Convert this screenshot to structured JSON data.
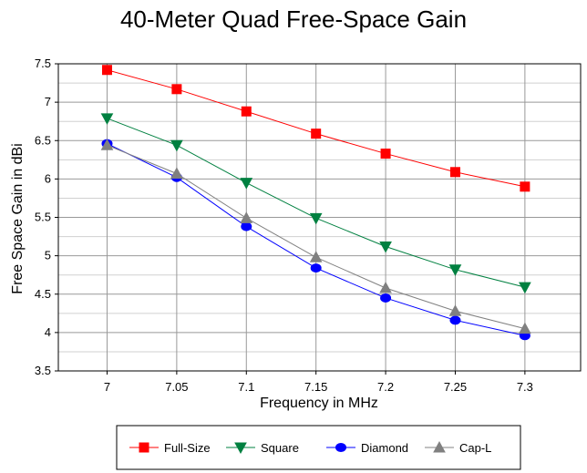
{
  "chart_data": {
    "type": "line",
    "title": "40-Meter Quad Free-Space Gain",
    "xlabel": "Frequency in MHz",
    "ylabel": "Free Space Gain in dBi",
    "x": [
      7,
      7.05,
      7.1,
      7.15,
      7.2,
      7.25,
      7.3
    ],
    "x_tick_labels": [
      "7",
      "7.05",
      "7.1",
      "7.15",
      "7.2",
      "7.25",
      "7.3"
    ],
    "xlim": [
      6.965,
      7.34
    ],
    "ylim": [
      3.5,
      7.5
    ],
    "y_ticks": [
      3.5,
      4,
      4.5,
      5,
      5.5,
      6,
      6.5,
      7,
      7.5
    ],
    "y_tick_labels": [
      "3.5",
      "4",
      "4.5",
      "5",
      "5.5",
      "6",
      "6.5",
      "7",
      "7.5"
    ],
    "grid": true,
    "legend_position": "bottom",
    "series": [
      {
        "name": "Full-Size",
        "color": "#ff0000",
        "marker": "square",
        "values": [
          7.42,
          7.17,
          6.88,
          6.59,
          6.33,
          6.09,
          5.9
        ]
      },
      {
        "name": "Square",
        "color": "#008040",
        "marker": "triangle-down",
        "values": [
          6.79,
          6.44,
          5.95,
          5.49,
          5.12,
          4.82,
          4.59
        ]
      },
      {
        "name": "Diamond",
        "color": "#0000ff",
        "marker": "circle",
        "values": [
          6.46,
          6.02,
          5.38,
          4.84,
          4.45,
          4.16,
          3.96
        ]
      },
      {
        "name": "Cap-L",
        "color": "#808080",
        "marker": "triangle-up",
        "values": [
          6.44,
          6.07,
          5.49,
          4.98,
          4.58,
          4.28,
          4.05
        ]
      }
    ]
  }
}
